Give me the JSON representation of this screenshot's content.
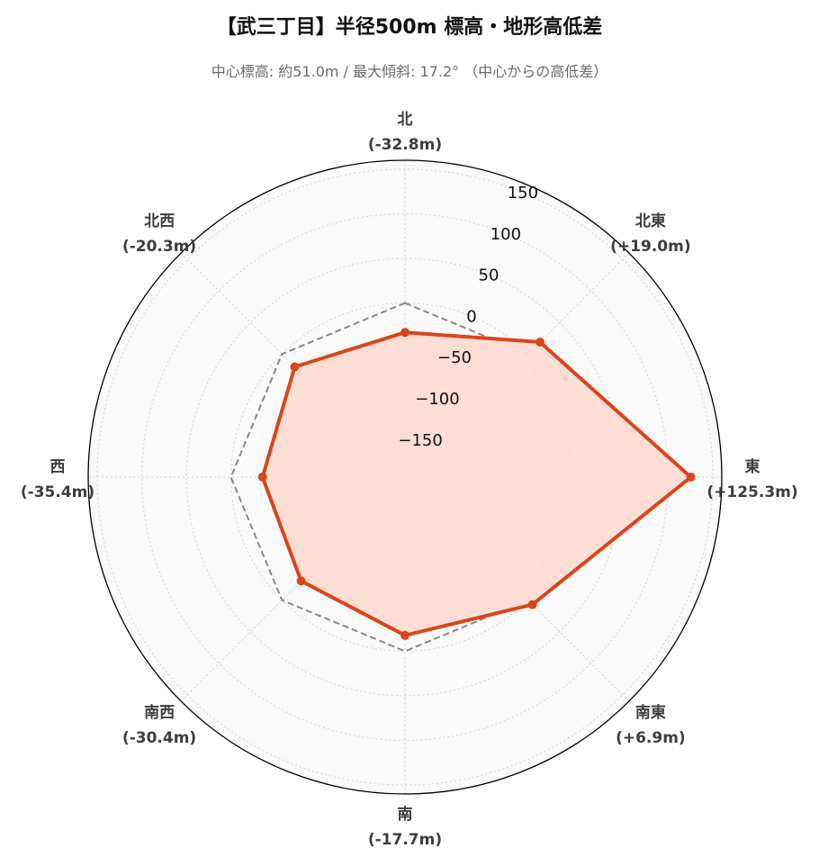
{
  "header": {
    "title": "【武三丁目】半径500m 標高・地形高低差",
    "subtitle": "中心標高: 約51.0m / 最大傾斜: 17.2° （中心からの高低差）"
  },
  "chart_data": {
    "type": "radar",
    "directions": [
      "北",
      "北東",
      "東",
      "南東",
      "南",
      "南西",
      "西",
      "北西"
    ],
    "direction_values_label": [
      "(-32.8m)",
      "(+19.0m)",
      "(+125.3m)",
      "(+6.9m)",
      "(-17.7m)",
      "(-30.4m)",
      "(-35.4m)",
      "(-20.3m)"
    ],
    "series": [
      {
        "values": [
          -32.8,
          19.0,
          125.3,
          6.9,
          -17.7,
          -30.4,
          -35.4,
          -20.3
        ],
        "line_color": "#d9461b",
        "fill_color": "#fcdcd3",
        "style": "solid"
      },
      {
        "values": [
          0,
          0,
          0,
          0,
          0,
          0,
          0,
          0
        ],
        "line_color": "#888888",
        "style": "dashed"
      }
    ],
    "radial_ticks": [
      -150,
      -100,
      -50,
      0,
      50,
      100,
      150
    ],
    "radial_tick_labels": [
      "−150",
      "−100",
      "−50",
      "0",
      "50",
      "100",
      "150"
    ],
    "rlim": [
      -195,
      160
    ],
    "grid": true,
    "background_color": "#fafafa"
  }
}
